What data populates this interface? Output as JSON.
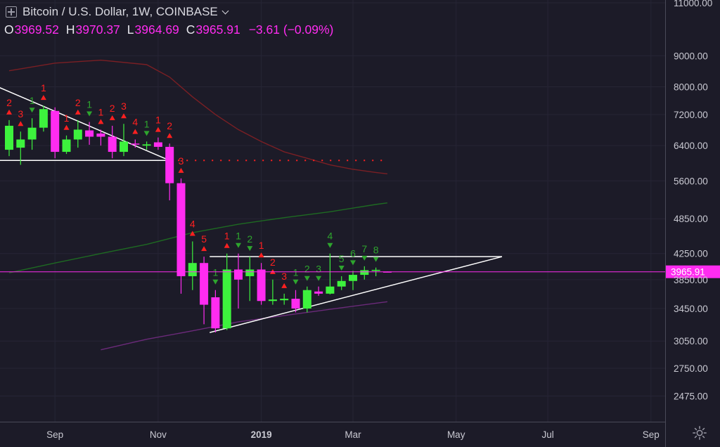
{
  "header": {
    "symbol_title": "Bitcoin / U.S. Dollar, 1W, COINBASE",
    "open_key": "O",
    "open": "3969.52",
    "high_key": "H",
    "high": "3970.37",
    "low_key": "L",
    "low": "3964.69",
    "close_key": "C",
    "close": "3965.91",
    "change": "−3.61 (−0.09%)"
  },
  "price_badge": "3965.91",
  "colors": {
    "background": "#1c1b28",
    "up": "#3df23d",
    "down": "#ff2cf0",
    "td_sell": "#ff2020",
    "td_buy": "#2ea52e",
    "ma_red": "#7a1f24",
    "ma_green": "#1e6a22",
    "ma_purple": "#6b2a7a",
    "trendline": "#ffffff",
    "price_line": "#ff2cf0"
  },
  "chart_data": {
    "type": "candlestick",
    "y_scale": "log",
    "ylim": [
      2350,
      11000
    ],
    "y_ticks": [
      11000,
      9000,
      8000,
      7200,
      6400,
      5600,
      4850,
      4250,
      3850,
      3450,
      3050,
      2750,
      2475
    ],
    "y_tick_labels": [
      "11000.00",
      "9000.00",
      "8000.00",
      "7200.00",
      "6400.00",
      "5600.00",
      "4850.00",
      "4250.00",
      "3850.00",
      "3450.00",
      "3050.00",
      "2750.00",
      "2475.00"
    ],
    "x_ticks": [
      {
        "label": "Sep",
        "week": 4
      },
      {
        "label": "Nov",
        "week": 13
      },
      {
        "label": "2019",
        "week": 22
      },
      {
        "label": "Mar",
        "week": 30
      },
      {
        "label": "May",
        "week": 39
      },
      {
        "label": "Jul",
        "week": 47
      },
      {
        "label": "Sep",
        "week": 56
      }
    ],
    "candles": [
      {
        "w": 0,
        "o": 6300,
        "h": 7050,
        "l": 6150,
        "c": 6900
      },
      {
        "w": 1,
        "o": 6350,
        "h": 6750,
        "l": 5950,
        "c": 6550
      },
      {
        "w": 2,
        "o": 6550,
        "h": 7100,
        "l": 6300,
        "c": 6850
      },
      {
        "w": 3,
        "o": 6850,
        "h": 7450,
        "l": 6750,
        "c": 7350
      },
      {
        "w": 4,
        "o": 7300,
        "h": 7400,
        "l": 6100,
        "c": 6250
      },
      {
        "w": 5,
        "o": 6250,
        "h": 6650,
        "l": 6200,
        "c": 6550
      },
      {
        "w": 6,
        "o": 6550,
        "h": 7050,
        "l": 6350,
        "c": 6800
      },
      {
        "w": 7,
        "o": 6780,
        "h": 7000,
        "l": 6420,
        "c": 6620
      },
      {
        "w": 8,
        "o": 6700,
        "h": 6800,
        "l": 6400,
        "c": 6620
      },
      {
        "w": 9,
        "o": 6620,
        "h": 6900,
        "l": 6100,
        "c": 6250
      },
      {
        "w": 10,
        "o": 6250,
        "h": 6950,
        "l": 6150,
        "c": 6500
      },
      {
        "w": 11,
        "o": 6450,
        "h": 6550,
        "l": 6350,
        "c": 6430
      },
      {
        "w": 12,
        "o": 6400,
        "h": 6500,
        "l": 6300,
        "c": 6430
      },
      {
        "w": 13,
        "o": 6480,
        "h": 6600,
        "l": 6300,
        "c": 6370
      },
      {
        "w": 14,
        "o": 6370,
        "h": 6450,
        "l": 5200,
        "c": 5550
      },
      {
        "w": 15,
        "o": 5550,
        "h": 5650,
        "l": 3650,
        "c": 3900
      },
      {
        "w": 16,
        "o": 3900,
        "h": 4450,
        "l": 3700,
        "c": 4100
      },
      {
        "w": 17,
        "o": 4100,
        "h": 4200,
        "l": 3250,
        "c": 3500
      },
      {
        "w": 18,
        "o": 3600,
        "h": 3700,
        "l": 3150,
        "c": 3200
      },
      {
        "w": 19,
        "o": 3200,
        "h": 4250,
        "l": 3180,
        "c": 4000
      },
      {
        "w": 20,
        "o": 4000,
        "h": 4250,
        "l": 3450,
        "c": 3850
      },
      {
        "w": 21,
        "o": 3900,
        "h": 4200,
        "l": 3550,
        "c": 4000
      },
      {
        "w": 22,
        "o": 4000,
        "h": 4100,
        "l": 3500,
        "c": 3550
      },
      {
        "w": 23,
        "o": 3550,
        "h": 3850,
        "l": 3500,
        "c": 3570
      },
      {
        "w": 24,
        "o": 3560,
        "h": 3650,
        "l": 3500,
        "c": 3580
      },
      {
        "w": 25,
        "o": 3580,
        "h": 3700,
        "l": 3400,
        "c": 3450
      },
      {
        "w": 26,
        "o": 3450,
        "h": 3750,
        "l": 3400,
        "c": 3700
      },
      {
        "w": 27,
        "o": 3680,
        "h": 3750,
        "l": 3620,
        "c": 3650
      },
      {
        "w": 28,
        "o": 3650,
        "h": 4250,
        "l": 3640,
        "c": 3750
      },
      {
        "w": 29,
        "o": 3750,
        "h": 3900,
        "l": 3700,
        "c": 3830
      },
      {
        "w": 30,
        "o": 3830,
        "h": 3980,
        "l": 3700,
        "c": 3920
      },
      {
        "w": 31,
        "o": 3920,
        "h": 4050,
        "l": 3850,
        "c": 3990
      },
      {
        "w": 32,
        "o": 3985,
        "h": 4030,
        "l": 3900,
        "c": 3995
      },
      {
        "w": 33,
        "o": 3969.52,
        "h": 3970.37,
        "l": 3964.69,
        "c": 3965.91
      }
    ],
    "td_labels": [
      {
        "w": 0,
        "text": "2",
        "kind": "sell"
      },
      {
        "w": 1,
        "text": "3",
        "kind": "sell"
      },
      {
        "w": 2,
        "text": "1",
        "kind": "buy"
      },
      {
        "w": 3,
        "text": "1",
        "kind": "sell"
      },
      {
        "w": 5,
        "text": "1",
        "kind": "sell"
      },
      {
        "w": 6,
        "text": "2",
        "kind": "sell"
      },
      {
        "w": 7,
        "text": "1",
        "kind": "buy"
      },
      {
        "w": 8,
        "text": "1",
        "kind": "sell"
      },
      {
        "w": 9,
        "text": "2",
        "kind": "sell"
      },
      {
        "w": 10,
        "text": "3",
        "kind": "sell"
      },
      {
        "w": 11,
        "text": "4",
        "kind": "sell"
      },
      {
        "w": 12,
        "text": "1",
        "kind": "buy"
      },
      {
        "w": 13,
        "text": "1",
        "kind": "sell"
      },
      {
        "w": 14,
        "text": "2",
        "kind": "sell"
      },
      {
        "w": 15,
        "text": "3",
        "kind": "sell"
      },
      {
        "w": 16,
        "text": "4",
        "kind": "sell"
      },
      {
        "w": 17,
        "text": "5",
        "kind": "sell"
      },
      {
        "w": 18,
        "text": "1",
        "kind": "buy"
      },
      {
        "w": 19,
        "text": "1",
        "kind": "sell"
      },
      {
        "w": 20,
        "text": "1",
        "kind": "buy"
      },
      {
        "w": 21,
        "text": "2",
        "kind": "buy"
      },
      {
        "w": 22,
        "text": "1",
        "kind": "sell"
      },
      {
        "w": 23,
        "text": "2",
        "kind": "sell"
      },
      {
        "w": 24,
        "text": "3",
        "kind": "sell"
      },
      {
        "w": 25,
        "text": "1",
        "kind": "buy"
      },
      {
        "w": 26,
        "text": "2",
        "kind": "buy"
      },
      {
        "w": 27,
        "text": "3",
        "kind": "buy"
      },
      {
        "w": 28,
        "text": "4",
        "kind": "buy"
      },
      {
        "w": 29,
        "text": "5",
        "kind": "buy"
      },
      {
        "w": 30,
        "text": "6",
        "kind": "buy"
      },
      {
        "w": 31,
        "text": "7",
        "kind": "buy"
      },
      {
        "w": 32,
        "text": "8",
        "kind": "buy"
      }
    ],
    "ma_red": [
      [
        0,
        8500
      ],
      [
        4,
        8750
      ],
      [
        8,
        8850
      ],
      [
        12,
        8700
      ],
      [
        14,
        8300
      ],
      [
        16,
        7700
      ],
      [
        18,
        7200
      ],
      [
        20,
        6800
      ],
      [
        22,
        6500
      ],
      [
        24,
        6250
      ],
      [
        26,
        6100
      ],
      [
        28,
        5950
      ],
      [
        30,
        5850
      ],
      [
        32,
        5780
      ],
      [
        33,
        5750
      ]
    ],
    "ma_green": [
      [
        0,
        3950
      ],
      [
        4,
        4100
      ],
      [
        8,
        4250
      ],
      [
        12,
        4400
      ],
      [
        16,
        4600
      ],
      [
        20,
        4750
      ],
      [
        24,
        4870
      ],
      [
        28,
        4980
      ],
      [
        32,
        5120
      ],
      [
        33,
        5150
      ]
    ],
    "ma_purple": [
      [
        8,
        2950
      ],
      [
        12,
        3070
      ],
      [
        16,
        3170
      ],
      [
        20,
        3280
      ],
      [
        24,
        3360
      ],
      [
        28,
        3440
      ],
      [
        32,
        3520
      ],
      [
        33,
        3540
      ]
    ],
    "trendlines": [
      {
        "from": [
          -1,
          8000
        ],
        "to": [
          14,
          6050
        ]
      },
      {
        "from": [
          17.5,
          4200
        ],
        "to": [
          43,
          4200
        ]
      },
      {
        "from": [
          17.5,
          3150
        ],
        "to": [
          43,
          4200
        ]
      },
      {
        "from": [
          -1,
          6050
        ],
        "to": [
          14,
          6050
        ]
      }
    ],
    "dotted_level": {
      "from": [
        14,
        6050
      ],
      "to": [
        33,
        6050
      ]
    }
  }
}
